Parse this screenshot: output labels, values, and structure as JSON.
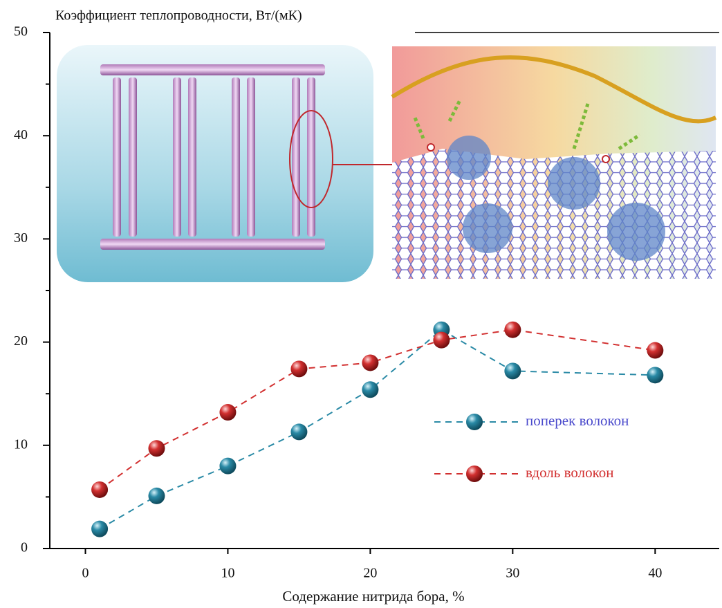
{
  "chart_data": {
    "type": "line",
    "title": "Коэффициент теплопроводности, Вт/(мК)",
    "x_label": "Содержание нитрида бора, %",
    "x": [
      1,
      5,
      10,
      15,
      20,
      25,
      30,
      40
    ],
    "series": [
      {
        "name": "поперек волокон",
        "color": "#2a8aa6",
        "text_color": "#4a4acc",
        "values": [
          1.9,
          5.1,
          8.0,
          11.3,
          15.4,
          21.2,
          17.2,
          16.8
        ]
      },
      {
        "name": "вдоль волокон",
        "color": "#d23030",
        "text_color": "#d23030",
        "values": [
          5.7,
          9.7,
          13.2,
          17.4,
          18.0,
          20.2,
          21.2,
          19.2
        ]
      }
    ],
    "xlim": [
      -2.5,
      44.5
    ],
    "xticks": [
      0,
      10,
      20,
      30,
      40
    ],
    "ylim": [
      0,
      50
    ],
    "yticks": [
      0,
      10,
      20,
      30,
      40,
      50
    ],
    "y_minor_ticks": [
      5,
      15,
      25,
      35,
      45
    ],
    "grid": false
  }
}
